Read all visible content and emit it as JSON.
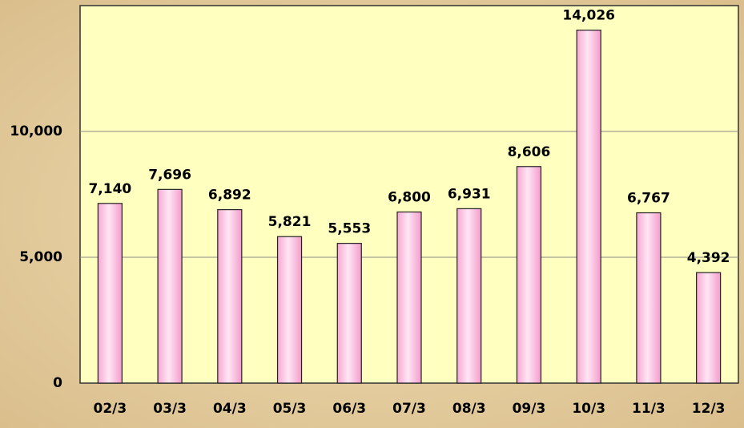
{
  "chart_data": {
    "type": "bar",
    "categories": [
      "02/3",
      "03/3",
      "04/3",
      "05/3",
      "06/3",
      "07/3",
      "08/3",
      "09/3",
      "10/3",
      "11/3",
      "12/3"
    ],
    "values": [
      7140,
      7696,
      6892,
      5821,
      5553,
      6800,
      6931,
      8606,
      14026,
      6767,
      4392
    ],
    "value_labels": [
      "7,140",
      "7,696",
      "6,892",
      "5,821",
      "5,553",
      "6,800",
      "6,931",
      "8,606",
      "14,026",
      "6,767",
      "4,392"
    ],
    "color": "#ffb8e0",
    "ylim": [
      0,
      15000
    ],
    "yticks": [
      0,
      {
        "value": 5000,
        "label": "5,000"
      },
      {
        "value": 10000,
        "label": "10,000"
      }
    ],
    "grid": true
  }
}
